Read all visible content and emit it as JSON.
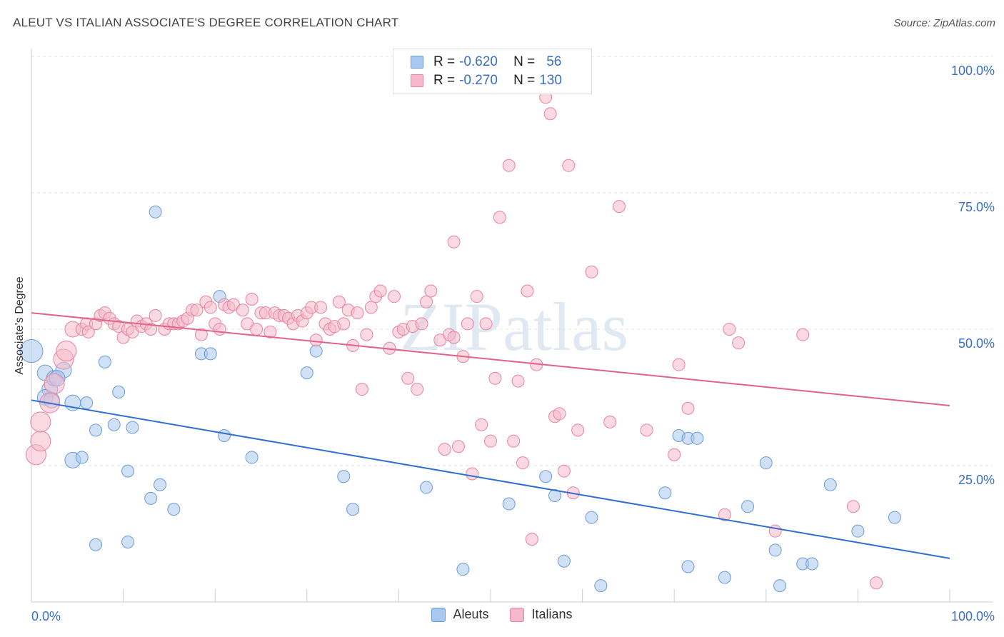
{
  "title": "ALEUT VS ITALIAN ASSOCIATE'S DEGREE CORRELATION CHART",
  "source_label": "Source: ZipAtlas.com",
  "watermark": "ZIPatlas",
  "legend": {
    "r_label": "R =",
    "n_label": "N =",
    "rows": [
      {
        "r": "-0.620",
        "n": "56",
        "color": "#a9c8ef",
        "border": "#6b9bd6"
      },
      {
        "r": "-0.270",
        "n": "130",
        "color": "#f6b9cb",
        "border": "#e7849f"
      }
    ]
  },
  "chart_data": {
    "type": "scatter",
    "title": "ALEUT VS ITALIAN ASSOCIATE'S DEGREE CORRELATION CHART",
    "xlabel": "",
    "ylabel": "Associate's Degree",
    "xlim": [
      0,
      100
    ],
    "ylim": [
      0,
      100
    ],
    "x_tick_labels": [
      "0.0%",
      "100.0%"
    ],
    "y_tick_labels": [
      "100.0%",
      "75.0%",
      "50.0%",
      "25.0%"
    ],
    "y_ticks": [
      100,
      75,
      50,
      25
    ],
    "grid": true,
    "legend_position": "bottom-center",
    "series": [
      {
        "name": "Aleuts",
        "color": "#6b9bd6",
        "fill": "#a9c8ef",
        "trend": {
          "x": [
            0,
            100
          ],
          "y": [
            37.0,
            8.0
          ],
          "color": "#2f6fd1"
        },
        "points": [
          [
            0,
            46
          ],
          [
            1.5,
            42
          ],
          [
            2,
            39
          ],
          [
            2.5,
            41
          ],
          [
            3.5,
            42.5
          ],
          [
            1.5,
            37.5
          ],
          [
            2.2,
            37
          ],
          [
            4.5,
            36.5
          ],
          [
            6,
            36.5
          ],
          [
            7,
            31.5
          ],
          [
            8,
            44
          ],
          [
            9,
            32.5
          ],
          [
            9.5,
            38.5
          ],
          [
            11,
            32
          ],
          [
            10.5,
            24
          ],
          [
            4.5,
            26
          ],
          [
            5.5,
            26.5
          ],
          [
            7,
            10.5
          ],
          [
            10.5,
            11
          ],
          [
            13,
            19
          ],
          [
            14,
            21.5
          ],
          [
            15.5,
            17
          ],
          [
            13.5,
            71.5
          ],
          [
            18.5,
            45.5
          ],
          [
            19.5,
            45.5
          ],
          [
            20.5,
            56
          ],
          [
            21,
            30.5
          ],
          [
            24,
            26.5
          ],
          [
            30,
            42
          ],
          [
            31,
            46
          ],
          [
            34,
            23
          ],
          [
            35,
            17
          ],
          [
            43,
            21
          ],
          [
            47,
            6
          ],
          [
            52,
            18
          ],
          [
            56,
            23
          ],
          [
            57,
            19.5
          ],
          [
            58,
            7.5
          ],
          [
            61,
            15.5
          ],
          [
            62,
            3
          ],
          [
            69,
            20
          ],
          [
            70.5,
            30.5
          ],
          [
            71.5,
            30
          ],
          [
            71.5,
            6.5
          ],
          [
            72.5,
            30
          ],
          [
            75.5,
            4.5
          ],
          [
            78,
            17.5
          ],
          [
            80,
            25.5
          ],
          [
            81,
            9.5
          ],
          [
            81.5,
            3
          ],
          [
            84,
            7
          ],
          [
            85,
            7
          ],
          [
            87,
            21.5
          ],
          [
            90,
            13
          ],
          [
            94,
            15.5
          ],
          [
            2.8,
            41
          ]
        ]
      },
      {
        "name": "Italians",
        "color": "#e7849f",
        "fill": "#f6b9cb",
        "trend": {
          "x": [
            0,
            100
          ],
          "y": [
            53.0,
            36.0
          ],
          "color": "#e2628a"
        },
        "points": [
          [
            0.5,
            27
          ],
          [
            1,
            29.5
          ],
          [
            1,
            33
          ],
          [
            2,
            36.5
          ],
          [
            2.5,
            40
          ],
          [
            3.5,
            44.5
          ],
          [
            3.8,
            46
          ],
          [
            4.5,
            50
          ],
          [
            5.5,
            50
          ],
          [
            6,
            51
          ],
          [
            6.2,
            49.5
          ],
          [
            7,
            51
          ],
          [
            7.5,
            52.5
          ],
          [
            8,
            53
          ],
          [
            8.5,
            52
          ],
          [
            9,
            51
          ],
          [
            9.5,
            50.5
          ],
          [
            10,
            48.5
          ],
          [
            10.5,
            50
          ],
          [
            11,
            49.5
          ],
          [
            11.5,
            51.5
          ],
          [
            12,
            50.5
          ],
          [
            12.5,
            51
          ],
          [
            13,
            50
          ],
          [
            13.5,
            52.5
          ],
          [
            14.5,
            50
          ],
          [
            15,
            51
          ],
          [
            15.5,
            51
          ],
          [
            16,
            51
          ],
          [
            16.5,
            51.5
          ],
          [
            17,
            52
          ],
          [
            17.5,
            53.5
          ],
          [
            18,
            53.5
          ],
          [
            18.5,
            49
          ],
          [
            19,
            55
          ],
          [
            19.5,
            54
          ],
          [
            20,
            51
          ],
          [
            20.5,
            50
          ],
          [
            21,
            54.5
          ],
          [
            21.5,
            54
          ],
          [
            22,
            54.5
          ],
          [
            23,
            53.5
          ],
          [
            23.5,
            51
          ],
          [
            24,
            55.5
          ],
          [
            24.5,
            50
          ],
          [
            25,
            53
          ],
          [
            25.5,
            53
          ],
          [
            26,
            49.5
          ],
          [
            26.5,
            53
          ],
          [
            27,
            52.5
          ],
          [
            27.5,
            52.5
          ],
          [
            28,
            52
          ],
          [
            28.5,
            51
          ],
          [
            29,
            52.5
          ],
          [
            29.5,
            51.5
          ],
          [
            30,
            53
          ],
          [
            30.5,
            54
          ],
          [
            31,
            48
          ],
          [
            31.5,
            54
          ],
          [
            32,
            51
          ],
          [
            32.5,
            50
          ],
          [
            33,
            50.5
          ],
          [
            33.5,
            55
          ],
          [
            34,
            51
          ],
          [
            34.5,
            53.5
          ],
          [
            35,
            47
          ],
          [
            35.5,
            53
          ],
          [
            36,
            39
          ],
          [
            36.5,
            49
          ],
          [
            37,
            54
          ],
          [
            37.5,
            56
          ],
          [
            38,
            57
          ],
          [
            39,
            46.5
          ],
          [
            39.5,
            56
          ],
          [
            40,
            49.5
          ],
          [
            40.5,
            50
          ],
          [
            41,
            41
          ],
          [
            41.5,
            50.5
          ],
          [
            42,
            39
          ],
          [
            42.5,
            51
          ],
          [
            43,
            55
          ],
          [
            43.5,
            57
          ],
          [
            44.5,
            48
          ],
          [
            45,
            28
          ],
          [
            45.5,
            49
          ],
          [
            46,
            48.5
          ],
          [
            46.5,
            28.5
          ],
          [
            47,
            45
          ],
          [
            47.5,
            51
          ],
          [
            48,
            23.5
          ],
          [
            48.5,
            56
          ],
          [
            49,
            32.5
          ],
          [
            49.5,
            51
          ],
          [
            50,
            29.5
          ],
          [
            50.5,
            41
          ],
          [
            51,
            70.5
          ],
          [
            52,
            80
          ],
          [
            52.5,
            29.5
          ],
          [
            53,
            40.5
          ],
          [
            53.5,
            25.5
          ],
          [
            54,
            57
          ],
          [
            54.5,
            11.5
          ],
          [
            55,
            43.5
          ],
          [
            56,
            92.5
          ],
          [
            56.5,
            89.5
          ],
          [
            57,
            34
          ],
          [
            57.5,
            34.5
          ],
          [
            58,
            24
          ],
          [
            58.5,
            80
          ],
          [
            59,
            20
          ],
          [
            59.5,
            31.5
          ],
          [
            61,
            60.5
          ],
          [
            63,
            33
          ],
          [
            64,
            72.5
          ],
          [
            67,
            31.5
          ],
          [
            70,
            27
          ],
          [
            70.5,
            43.5
          ],
          [
            71.5,
            35.5
          ],
          [
            75.5,
            16
          ],
          [
            76,
            50
          ],
          [
            77,
            47.5
          ],
          [
            81,
            13
          ],
          [
            84,
            49
          ],
          [
            89.5,
            17.5
          ],
          [
            92,
            3.5
          ],
          [
            46,
            66
          ]
        ]
      }
    ]
  }
}
